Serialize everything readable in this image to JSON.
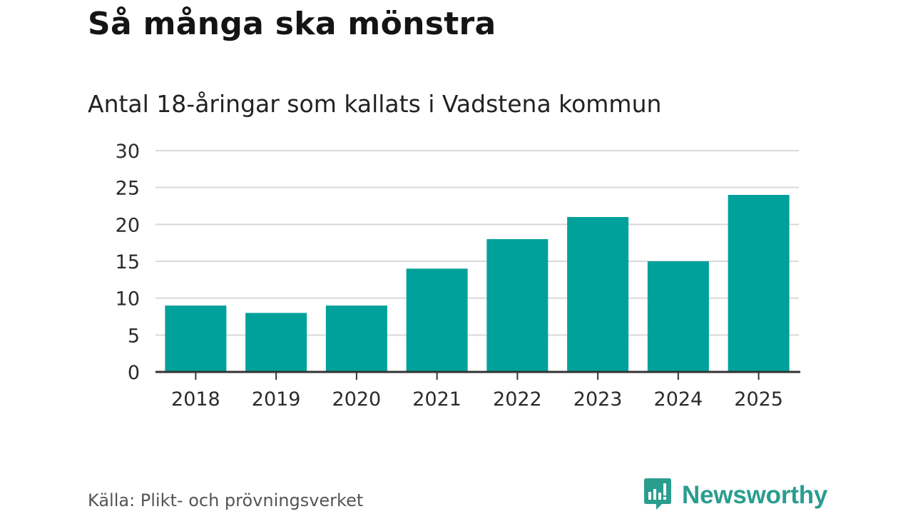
{
  "title": "Så många ska mönstra",
  "subtitle": "Antal 18-åringar som kallats i Vadstena kommun",
  "source": "Källa: Plikt- och prövningsverket",
  "brand": {
    "name": "Newsworthy",
    "icon": "newsworthy-logo-icon",
    "color": "#2a9d8f"
  },
  "colors": {
    "bar": "#00a19a",
    "grid": "#d9d9d9",
    "axis": "#333333"
  },
  "chart_data": {
    "type": "bar",
    "categories": [
      "2018",
      "2019",
      "2020",
      "2021",
      "2022",
      "2023",
      "2024",
      "2025"
    ],
    "values": [
      9,
      8,
      9,
      14,
      18,
      21,
      15,
      24
    ],
    "ylim": [
      0,
      30
    ],
    "yticks": [
      "0",
      "5",
      "10",
      "15",
      "20",
      "25",
      "30"
    ],
    "grid": true,
    "legend": "none"
  }
}
